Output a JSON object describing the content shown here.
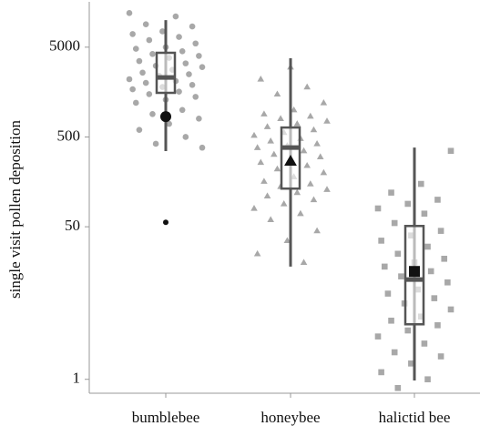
{
  "chart_data": {
    "type": "box",
    "y_label": "single visit pollen deposition",
    "categories": [
      "bumblebee",
      "honeybee",
      "halictid bee"
    ],
    "shapes": [
      "circle",
      "triangle",
      "square"
    ],
    "point_color": "#a8a8a8",
    "box_color": "#555555",
    "mean_color": "#111111",
    "ylog": true,
    "ylim": [
      0.7,
      16000
    ],
    "yticks": [
      1,
      50,
      500,
      5000
    ],
    "points": [
      [
        12000,
        11000,
        9000,
        8500,
        7500,
        7000,
        6500,
        6000,
        5500,
        5000,
        4800,
        4500,
        4200,
        4000,
        3800,
        3500,
        3300,
        3100,
        3000,
        2800,
        2600,
        2500,
        2400,
        2200,
        2100,
        2000,
        1900,
        1800,
        1700,
        1600,
        1500,
        1400,
        1300,
        1200,
        1000,
        900,
        800,
        700,
        600,
        500,
        420,
        380
      ],
      [
        3000,
        2200,
        1800,
        1500,
        1200,
        1000,
        900,
        850,
        800,
        750,
        700,
        650,
        600,
        560,
        520,
        480,
        450,
        420,
        400,
        380,
        350,
        320,
        300,
        280,
        260,
        240,
        220,
        200,
        180,
        160,
        150,
        140,
        130,
        120,
        110,
        100,
        90,
        80,
        70,
        60,
        45,
        35,
        25,
        20
      ],
      [
        350,
        150,
        120,
        100,
        90,
        80,
        70,
        55,
        45,
        40,
        35,
        30,
        25,
        22,
        20,
        18,
        16,
        14,
        12,
        10,
        9,
        8,
        7,
        6,
        5,
        4.5,
        4,
        3.5,
        3,
        2.5,
        2,
        1.8,
        1.5,
        1.2,
        1,
        0.8
      ]
    ],
    "boxes": [
      {
        "low": 348,
        "q1": 1550,
        "median": 2300,
        "q3": 4330,
        "high": 10000,
        "mean": 843
      },
      {
        "low": 18,
        "q1": 133,
        "median": 381,
        "q3": 637,
        "high": 3760,
        "mean": 268
      },
      {
        "low": 0.97,
        "q1": 4.1,
        "median": 12.9,
        "q3": 51,
        "high": 381,
        "mean": 15.9
      }
    ],
    "outliers": [
      [
        56
      ],
      [],
      []
    ]
  }
}
